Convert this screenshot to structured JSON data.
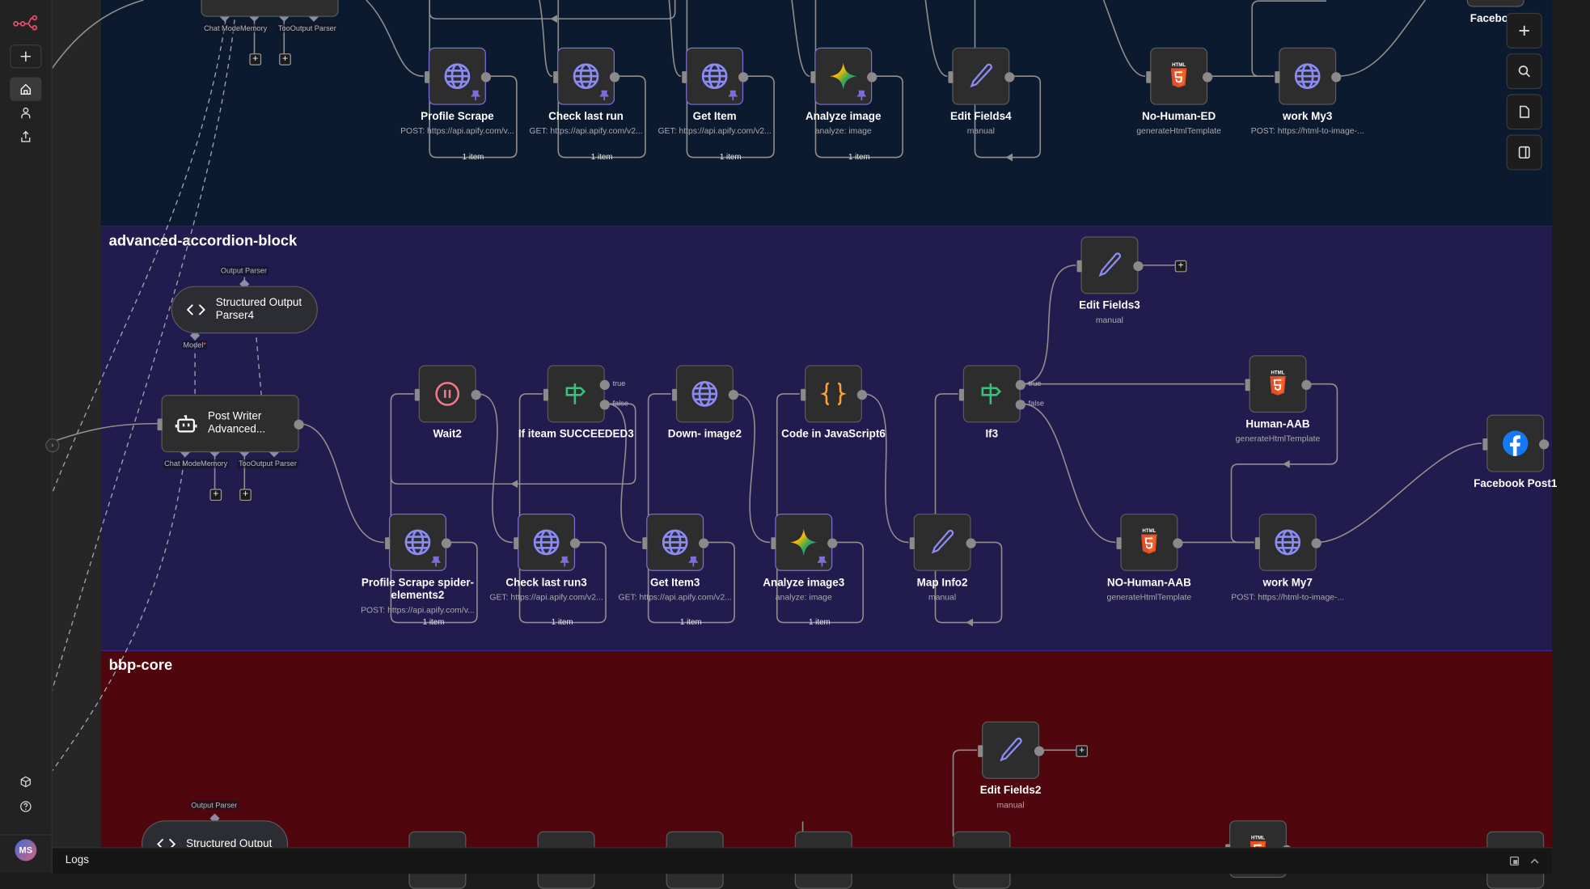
{
  "sidebar": {
    "items": [
      {
        "icon": "n8n-logo-icon"
      },
      {
        "icon": "plus-icon",
        "label": "Create"
      },
      {
        "icon": "home-icon",
        "active": true
      },
      {
        "icon": "user-icon"
      },
      {
        "icon": "share-icon"
      },
      {
        "icon": "cube-icon"
      },
      {
        "icon": "help-icon"
      }
    ],
    "avatar_initials": "MS"
  },
  "groups": [
    {
      "title": "",
      "color": "#0b1a2e"
    },
    {
      "title": "advanced-accordion-block",
      "color": "#221b4d"
    },
    {
      "title": "bbp-core",
      "color": "#4f060c"
    }
  ],
  "nodes": [
    {
      "id": "agent_top",
      "name": "",
      "subtitle": "",
      "icon": ""
    },
    {
      "id": "profile_scrape",
      "name": "Profile Scrape",
      "subtitle": "POST: https://api.apify.com/v...",
      "icon": "globe",
      "pinned": true
    },
    {
      "id": "check_last_run",
      "name": "Check last run",
      "subtitle": "GET: https://api.apify.com/v2...",
      "icon": "globe",
      "pinned": true
    },
    {
      "id": "get_item",
      "name": "Get Item",
      "subtitle": "GET: https://api.apify.com/v2...",
      "icon": "globe",
      "pinned": true
    },
    {
      "id": "analyze_image",
      "name": "Analyze image",
      "subtitle": "analyze: image",
      "icon": "gemini",
      "pinned": true
    },
    {
      "id": "edit_fields4",
      "name": "Edit Fields4",
      "subtitle": "manual",
      "icon": "pencil"
    },
    {
      "id": "no_human_ed",
      "name": "No-Human-ED",
      "subtitle": "generateHtmlTemplate",
      "icon": "html5"
    },
    {
      "id": "work_my3",
      "name": "work My3",
      "subtitle": "POST: https://html-to-image-...",
      "icon": "globe"
    },
    {
      "id": "facebook_top",
      "name": "Facebook",
      "subtitle": "",
      "icon": ""
    },
    {
      "id": "parser4",
      "name": "Structured Output Parser4",
      "subtitle": "",
      "icon": "code"
    },
    {
      "id": "post_writer",
      "name": "Post Writer Advanced...",
      "subtitle": "",
      "icon": "robot"
    },
    {
      "id": "wait2",
      "name": "Wait2",
      "subtitle": "",
      "icon": "pause"
    },
    {
      "id": "if_succeeded3",
      "name": "If iteam SUCCEEDED3",
      "subtitle": "",
      "icon": "if"
    },
    {
      "id": "down_image2",
      "name": "Down- image2",
      "subtitle": "",
      "icon": "globe"
    },
    {
      "id": "code_js6",
      "name": "Code in JavaScript6",
      "subtitle": "",
      "icon": "braces"
    },
    {
      "id": "if3",
      "name": "If3",
      "subtitle": "",
      "icon": "if"
    },
    {
      "id": "edit_fields3",
      "name": "Edit Fields3",
      "subtitle": "manual",
      "icon": "pencil"
    },
    {
      "id": "human_aab",
      "name": "Human-AAB",
      "subtitle": "generateHtmlTemplate",
      "icon": "html5"
    },
    {
      "id": "facebook_post1",
      "name": "Facebook Post1",
      "subtitle": "",
      "icon": "facebook"
    },
    {
      "id": "profile_spider2",
      "name": "Profile Scrape spider-elements2",
      "subtitle": "POST: https://api.apify.com/v...",
      "icon": "globe",
      "pinned": true
    },
    {
      "id": "check_last_run3",
      "name": "Check last run3",
      "subtitle": "GET: https://api.apify.com/v2...",
      "icon": "globe",
      "pinned": true
    },
    {
      "id": "get_item3",
      "name": "Get Item3",
      "subtitle": "GET: https://api.apify.com/v2...",
      "icon": "globe",
      "pinned": true
    },
    {
      "id": "analyze_image3",
      "name": "Analyze image3",
      "subtitle": "analyze: image",
      "icon": "gemini",
      "pinned": true
    },
    {
      "id": "map_info2",
      "name": "Map Info2",
      "subtitle": "manual",
      "icon": "pencil"
    },
    {
      "id": "no_human_aab",
      "name": "NO-Human-AAB",
      "subtitle": "generateHtmlTemplate",
      "icon": "html5"
    },
    {
      "id": "work_my7",
      "name": "work My7",
      "subtitle": "POST: https://html-to-image-...",
      "icon": "globe"
    },
    {
      "id": "edit_fields2",
      "name": "Edit Fields2",
      "subtitle": "manual",
      "icon": "pencil"
    },
    {
      "id": "parser_bottom",
      "name": "Structured Output",
      "subtitle": "",
      "icon": "code"
    },
    {
      "id": "bot_1",
      "name": "",
      "subtitle": "",
      "icon": ""
    },
    {
      "id": "bot_2",
      "name": "",
      "subtitle": "",
      "icon": ""
    },
    {
      "id": "bot_3",
      "name": "",
      "subtitle": "",
      "icon": ""
    },
    {
      "id": "bot_4",
      "name": "",
      "subtitle": "",
      "icon": ""
    },
    {
      "id": "bot_5",
      "name": "",
      "subtitle": "",
      "icon": ""
    },
    {
      "id": "bot_html",
      "name": "",
      "subtitle": "",
      "icon": "html5"
    },
    {
      "id": "bot_6",
      "name": "",
      "subtitle": "",
      "icon": ""
    }
  ],
  "port_labels": {
    "chat_model_memory": "Chat ModeMemory",
    "tool_output_parser": "TooOutput Parser",
    "output_parser": "Output Parser",
    "model_required": "Model",
    "required_mark": "*",
    "true": "true",
    "false": "false"
  },
  "item_badge": "1 item",
  "canvas_controls": [
    {
      "icon": "plus-icon"
    },
    {
      "icon": "search-icon"
    },
    {
      "icon": "sticky-note-icon"
    },
    {
      "icon": "panel-icon"
    }
  ],
  "logs": {
    "label": "Logs"
  },
  "colors": {
    "accent": "#ea4b71",
    "pinned_border": "#7a6fd8",
    "globe": "#8b8bf5",
    "html5": "#e44d26",
    "if": "#35c27a",
    "wait": "#f2798a",
    "code": "#f7a23b",
    "facebook": "#1877f2"
  }
}
